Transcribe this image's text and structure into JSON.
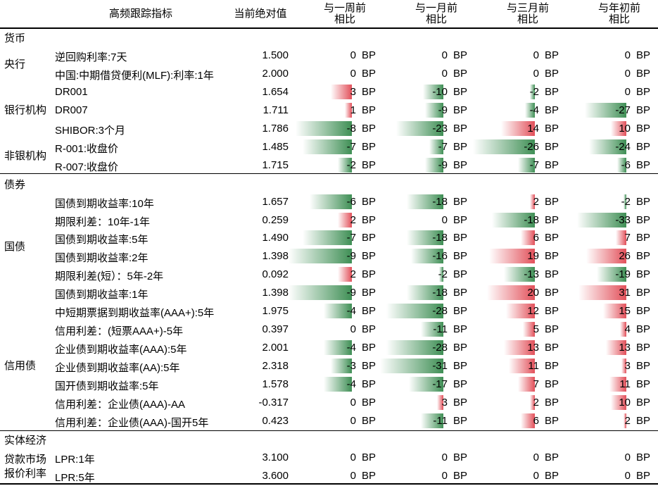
{
  "header": {
    "indicator": "高频跟踪指标",
    "current": "当前绝对值",
    "week_1": "与一周前",
    "week_2": "相比",
    "month_1": "与一月前",
    "month_2": "相比",
    "quarter_1": "与三月前",
    "quarter_2": "相比",
    "ytd_1": "与年初前",
    "ytd_2": "相比"
  },
  "unit": "BP",
  "colors": {
    "negative": "#3f8f55",
    "positive": "#e2505a"
  },
  "sections": [
    {
      "title": "货币",
      "groups": [
        {
          "label": "央行",
          "rows": [
            {
              "name": "逆回购利率:7天",
              "value": "1.500",
              "week": 0,
              "month": 0,
              "quarter": 0,
              "ytd": 0
            },
            {
              "name": "中国:中期借贷便利(MLF):利率:1年",
              "value": "2.000",
              "week": 0,
              "month": 0,
              "quarter": 0,
              "ytd": 0
            }
          ]
        },
        {
          "label": "银行机构",
          "rows": [
            {
              "name": "DR001",
              "value": "1.654",
              "week": 3,
              "month": -10,
              "quarter": -2,
              "ytd": 0
            },
            {
              "name": "DR007",
              "value": "1.711",
              "week": 1,
              "month": -9,
              "quarter": -4,
              "ytd": -27
            },
            {
              "name": "SHIBOR:3个月",
              "value": "1.786",
              "week": -8,
              "month": -23,
              "quarter": 14,
              "ytd": 10
            }
          ]
        },
        {
          "label": "非银机构",
          "rows": [
            {
              "name": "R-001:收盘价",
              "value": "1.485",
              "week": -7,
              "month": -7,
              "quarter": -26,
              "ytd": -24
            },
            {
              "name": "R-007:收盘价",
              "value": "1.715",
              "week": -2,
              "month": -9,
              "quarter": -7,
              "ytd": -6
            }
          ]
        }
      ]
    },
    {
      "title": "债券",
      "groups": [
        {
          "label": "国债",
          "rows": [
            {
              "name": "国债到期收益率:10年",
              "value": "1.657",
              "week": -6,
              "month": -18,
              "quarter": 2,
              "ytd": -2
            },
            {
              "name": "期限利差：10年-1年",
              "value": "0.259",
              "week": 2,
              "month": 0,
              "quarter": -18,
              "ytd": -33
            },
            {
              "name": "国债到期收益率:5年",
              "value": "1.490",
              "week": -7,
              "month": -18,
              "quarter": 6,
              "ytd": 7
            },
            {
              "name": "国债到期收益率:2年",
              "value": "1.398",
              "week": -9,
              "month": -16,
              "quarter": 19,
              "ytd": 26
            },
            {
              "name": "期限利差(短）：5年-2年",
              "value": "0.092",
              "week": 2,
              "month": -2,
              "quarter": -13,
              "ytd": -19
            },
            {
              "name": "国债到期收益率:1年",
              "value": "1.398",
              "week": -9,
              "month": -18,
              "quarter": 20,
              "ytd": 31
            }
          ]
        },
        {
          "label": "信用债",
          "rows": [
            {
              "name": "中短期票据到期收益率(AAA+):5年",
              "value": "1.975",
              "week": -4,
              "month": -28,
              "quarter": 12,
              "ytd": 15
            },
            {
              "name": "信用利差：(短票AAA+)-5年",
              "value": "0.397",
              "week": 0,
              "month": -11,
              "quarter": 5,
              "ytd": 4
            },
            {
              "name": "企业债到期收益率(AAA):5年",
              "value": "2.001",
              "week": -4,
              "month": -28,
              "quarter": 13,
              "ytd": 13
            },
            {
              "name": "企业债到期收益率(AA):5年",
              "value": "2.318",
              "week": -3,
              "month": -31,
              "quarter": 11,
              "ytd": 3
            },
            {
              "name": "国开债到期收益率:5年",
              "value": "1.578",
              "week": -4,
              "month": -17,
              "quarter": 7,
              "ytd": 11
            },
            {
              "name": "信用利差：企业债(AAA)-AA",
              "value": "-0.317",
              "week": 0,
              "month": 3,
              "quarter": 2,
              "ytd": 10
            },
            {
              "name": "信用利差：企业债(AAA)-国开5年",
              "value": "0.423",
              "week": 0,
              "month": -11,
              "quarter": 6,
              "ytd": 2
            }
          ]
        }
      ]
    },
    {
      "title": "实体经济",
      "groups": [
        {
          "label": "贷款市场报价利率",
          "rows": [
            {
              "name": "LPR:1年",
              "value": "3.100",
              "week": 0,
              "month": 0,
              "quarter": 0,
              "ytd": 0
            },
            {
              "name": "LPR:5年",
              "value": "3.600",
              "week": 0,
              "month": 0,
              "quarter": 0,
              "ytd": 0
            }
          ]
        }
      ]
    }
  ]
}
